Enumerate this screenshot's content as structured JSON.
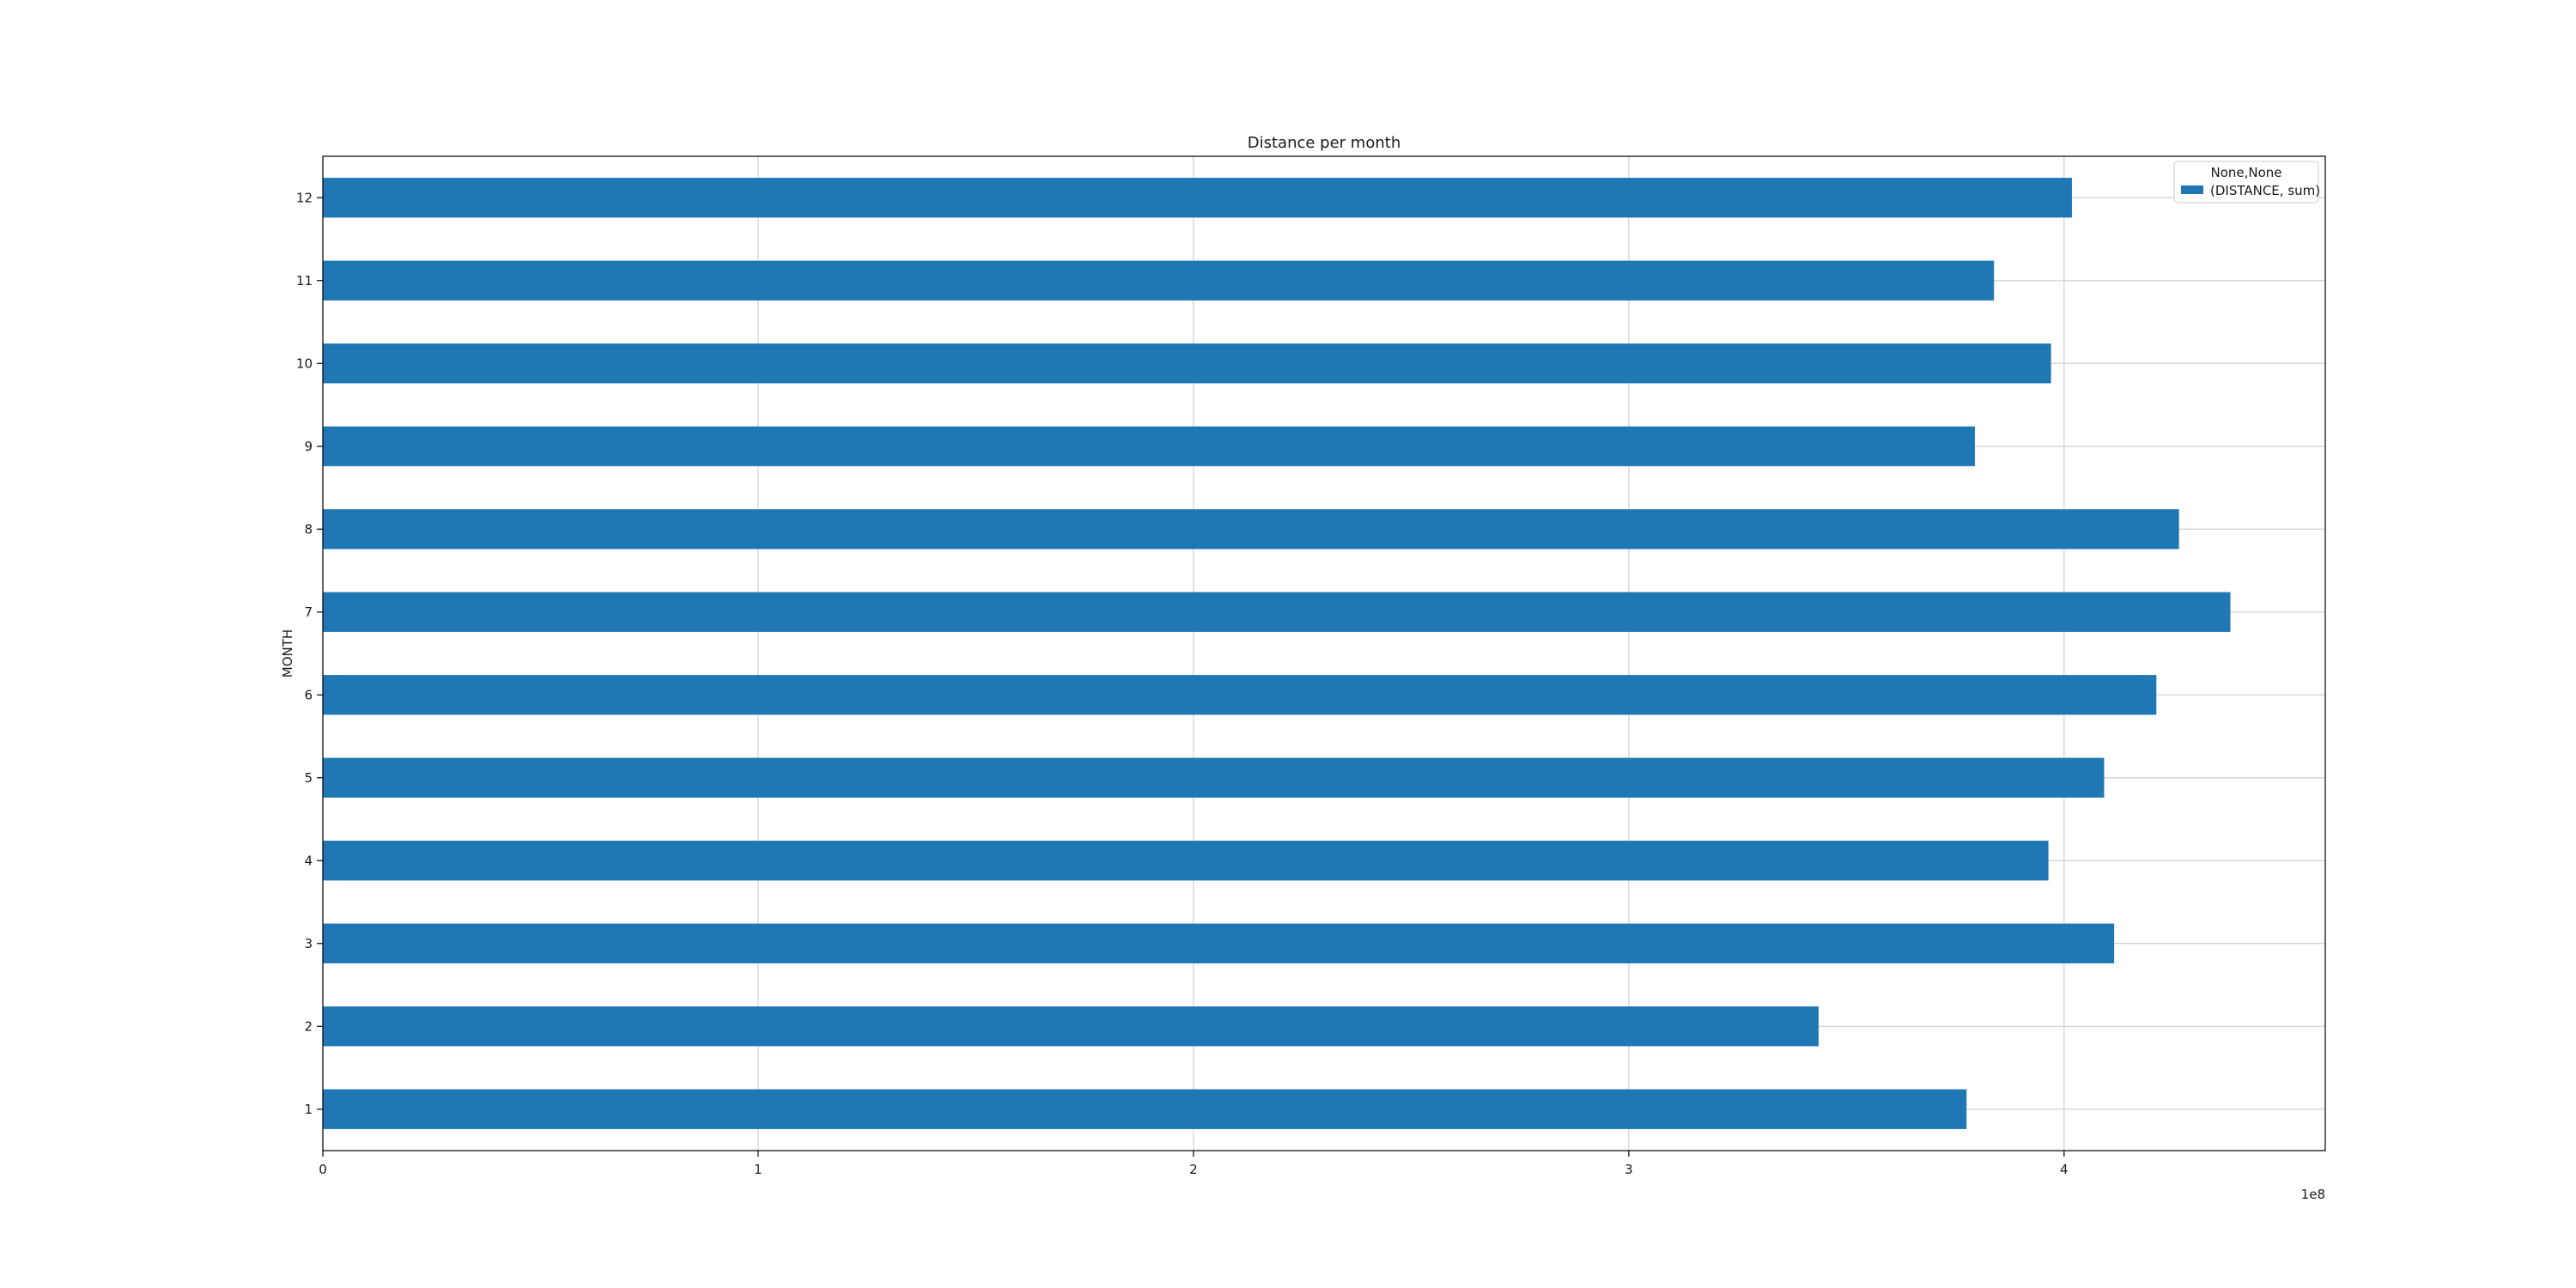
{
  "chart_data": {
    "type": "bar",
    "orientation": "horizontal",
    "title": "Distance per month",
    "xlabel": "",
    "ylabel": "MONTH",
    "x_offset_label": "1e8",
    "x_ticks": [
      "0",
      "1",
      "2",
      "3",
      "4"
    ],
    "xlim": [
      0,
      4.6
    ],
    "categories": [
      "1",
      "2",
      "3",
      "4",
      "5",
      "6",
      "7",
      "8",
      "9",
      "10",
      "11",
      "12"
    ],
    "series": [
      {
        "name": "(DISTANCE, sum)",
        "color": "#1f77b4",
        "values": [
          3.776,
          3.436,
          4.115,
          3.964,
          4.092,
          4.212,
          4.382,
          4.264,
          3.795,
          3.97,
          3.839,
          4.018
        ]
      }
    ],
    "legend": {
      "title": "None,None",
      "placement": "top-right"
    },
    "grid": true
  }
}
